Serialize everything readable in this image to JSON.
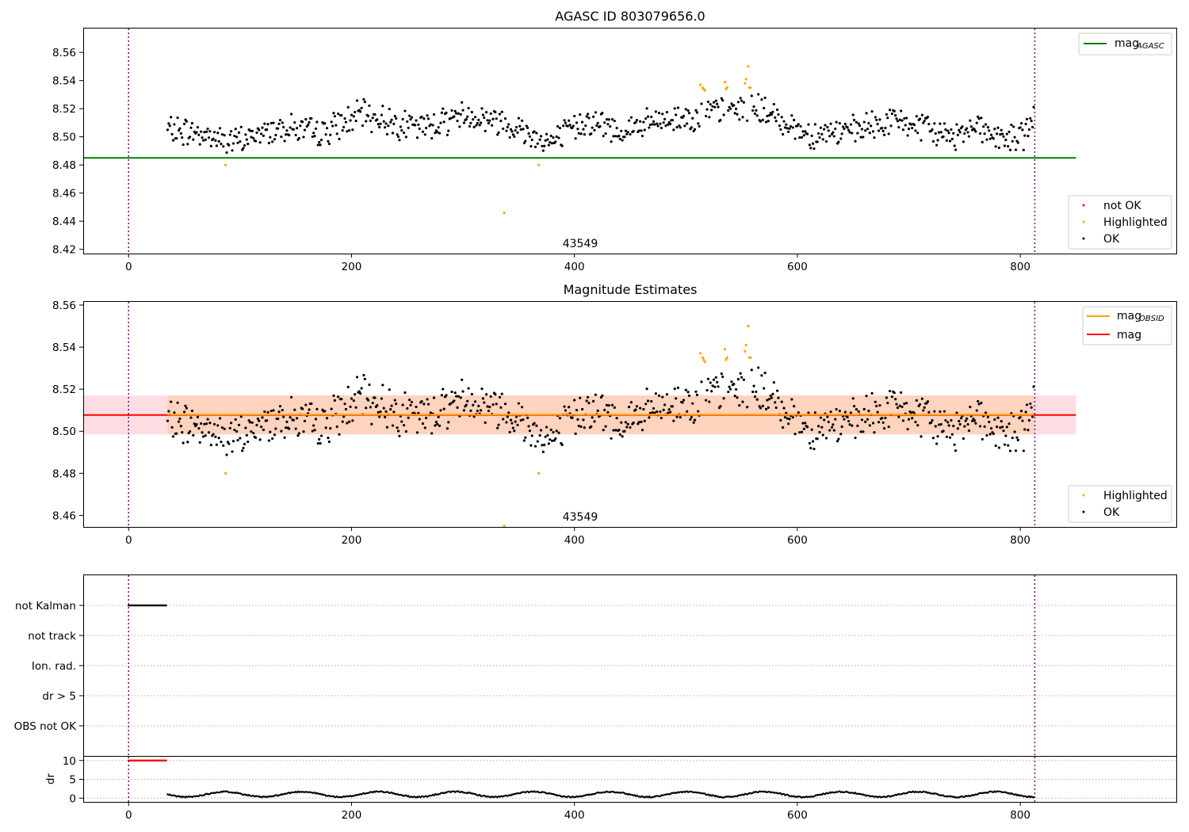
{
  "chart_data": [
    {
      "type": "scatter",
      "title": "AGASC ID 803079656.0",
      "xlim": [
        -40,
        940
      ],
      "ylim": [
        8.417,
        8.577
      ],
      "xticks": [
        0,
        200,
        400,
        600,
        800
      ],
      "yticks": [
        8.42,
        8.44,
        8.46,
        8.48,
        8.5,
        8.52,
        8.54,
        8.56
      ],
      "mag_agasc": 8.485,
      "obs_boundaries": [
        0,
        813
      ],
      "annotation": {
        "text": "43549",
        "x": 406
      },
      "series": [
        {
          "name": "not OK",
          "color": "#ff0000",
          "x": [],
          "y": []
        },
        {
          "name": "Highlighted",
          "color": "#ffa500",
          "x": [
            87,
            337,
            368,
            513,
            515,
            516,
            517,
            535,
            536,
            537,
            553,
            554,
            556,
            557,
            558
          ],
          "y": [
            8.48,
            8.446,
            8.48,
            8.537,
            8.535,
            8.534,
            8.533,
            8.539,
            8.534,
            8.535,
            8.538,
            8.541,
            8.55,
            8.535,
            8.535
          ]
        },
        {
          "name": "OK",
          "color": "#000000",
          "generated": true,
          "x_range": [
            35,
            812
          ],
          "y_range": [
            8.484,
            8.53
          ]
        }
      ],
      "legend": [
        {
          "label": "mag",
          "sub": "AGASC",
          "color": "#008000",
          "kind": "line"
        },
        {
          "label": "not OK",
          "color": "#ff0000",
          "kind": "marker"
        },
        {
          "label": "Highlighted",
          "color": "#ffa500",
          "kind": "marker"
        },
        {
          "label": "OK",
          "color": "#000000",
          "kind": "marker"
        }
      ]
    },
    {
      "type": "scatter",
      "title": "Magnitude Estimates",
      "xlim": [
        -40,
        940
      ],
      "ylim": [
        8.4545,
        8.5615
      ],
      "xticks": [
        0,
        200,
        400,
        600,
        800
      ],
      "yticks": [
        8.46,
        8.48,
        8.5,
        8.52,
        8.54,
        8.56
      ],
      "mag": 8.5077,
      "mag_obsid": 8.5079,
      "band": [
        8.4985,
        8.517
      ],
      "obs_boundaries": [
        0,
        813
      ],
      "annotation": {
        "text": "43549",
        "x": 406
      },
      "legend": [
        {
          "label": "mag",
          "sub": "OBSID",
          "color": "#ffa500",
          "kind": "line"
        },
        {
          "label": "mag",
          "color": "#ff0000",
          "kind": "line"
        },
        {
          "label": "Highlighted",
          "color": "#ffa500",
          "kind": "marker"
        },
        {
          "label": "OK",
          "color": "#000000",
          "kind": "marker"
        }
      ]
    },
    {
      "type": "scatter",
      "title": "",
      "xlim": [
        -40,
        940
      ],
      "xticks": [
        0,
        200,
        400,
        600,
        800
      ],
      "flag_rows": [
        "not Kalman",
        "not track",
        "Ion. rad.",
        "dr > 5",
        "OBS not OK"
      ],
      "flag_points": {
        "row": "not Kalman",
        "x_range": [
          0,
          34
        ]
      },
      "obs_boundaries": [
        0,
        813
      ]
    },
    {
      "type": "scatter",
      "title": "",
      "ylabel": "dr",
      "xlim": [
        -40,
        940
      ],
      "ylim": [
        -1,
        11
      ],
      "xticks": [
        0,
        200,
        400,
        600,
        800
      ],
      "yticks": [
        0,
        5,
        10
      ],
      "dr_flat": {
        "value": 10,
        "x_range": [
          0,
          34
        ],
        "color": "#ff0000"
      },
      "dr_series": {
        "x_range": [
          35,
          812
        ],
        "y_range": [
          0.2,
          1.9
        ]
      },
      "obs_boundaries": [
        0,
        813
      ]
    }
  ]
}
